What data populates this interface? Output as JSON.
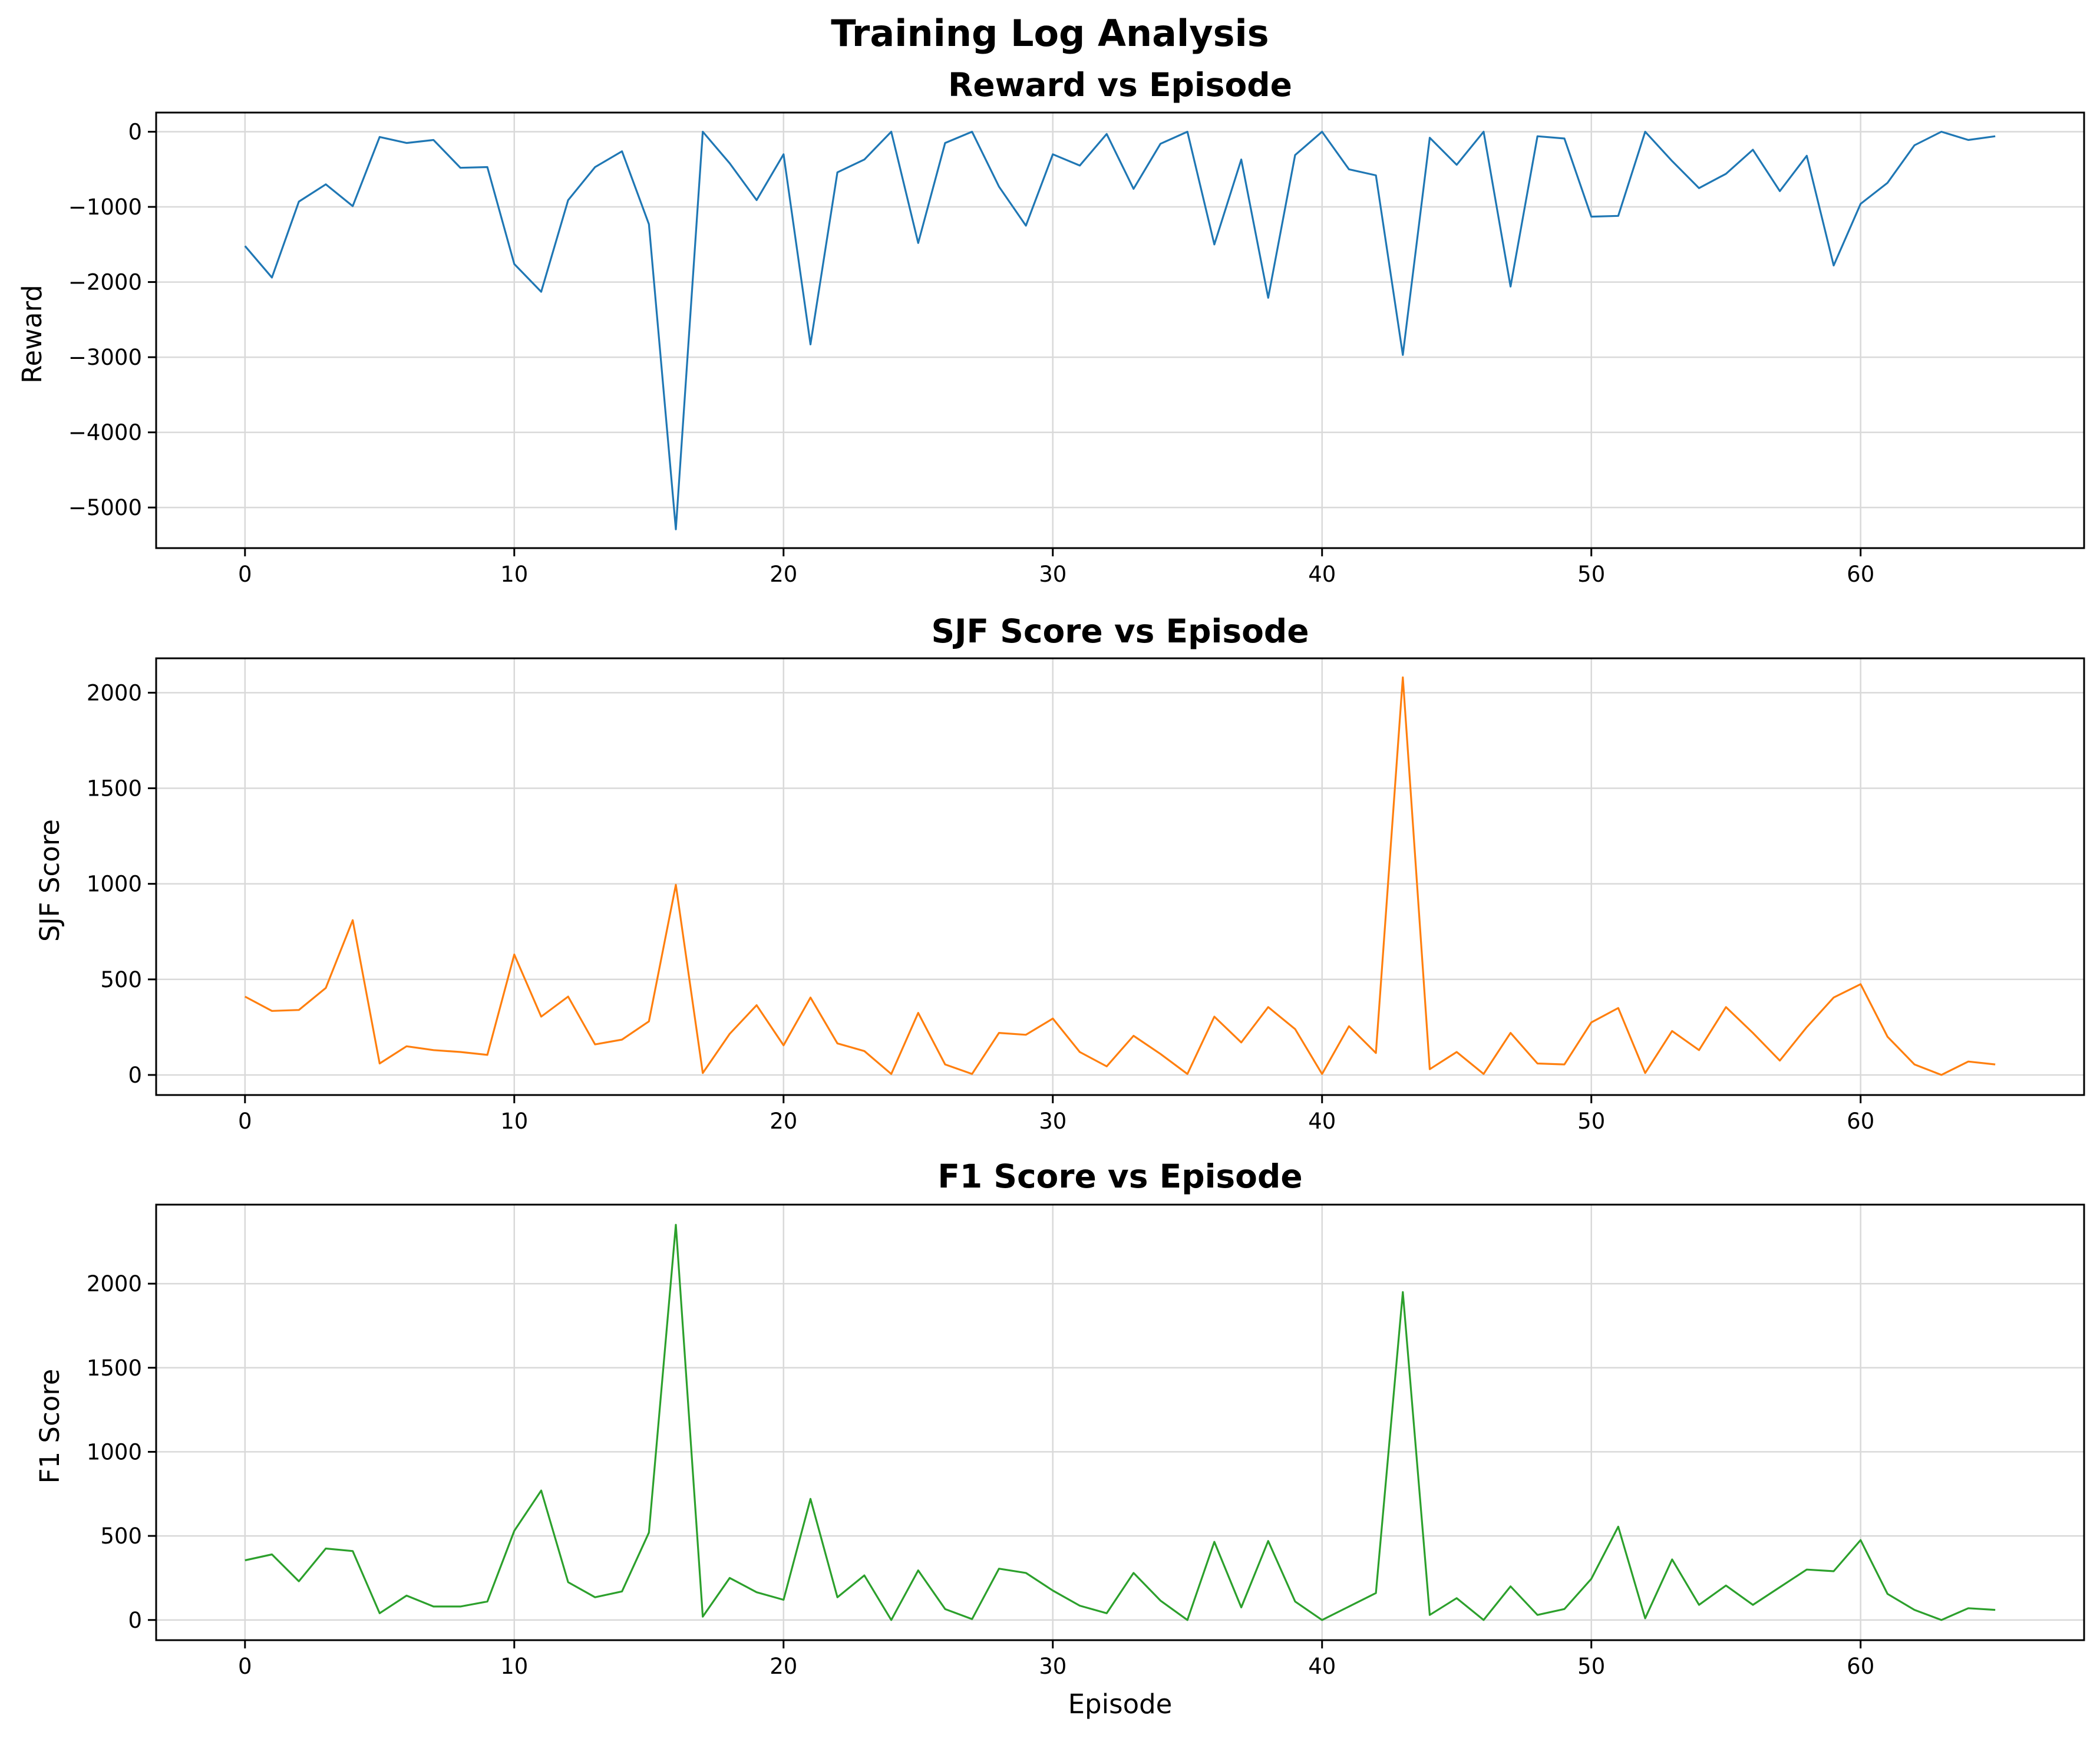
{
  "figure": {
    "suptitle": "Training Log Analysis"
  },
  "chart_data": [
    {
      "type": "line",
      "title": "Reward vs Episode",
      "xlabel": "",
      "ylabel": "Reward",
      "xlim": [
        -3.3,
        68.3
      ],
      "ylim": [
        -5540,
        255
      ],
      "xticks": [
        0,
        10,
        20,
        30,
        40,
        50,
        60
      ],
      "yticks": [
        0,
        -1000,
        -2000,
        -3000,
        -4000,
        -5000
      ],
      "ytick_labels": [
        "0",
        "−1000",
        "−2000",
        "−3000",
        "−4000",
        "−5000"
      ],
      "grid": true,
      "color": "#1f77b4",
      "x": [
        0,
        1,
        2,
        3,
        4,
        5,
        6,
        7,
        8,
        9,
        10,
        11,
        12,
        13,
        14,
        15,
        16,
        17,
        18,
        19,
        20,
        21,
        22,
        23,
        24,
        25,
        26,
        27,
        28,
        29,
        30,
        31,
        32,
        33,
        34,
        35,
        36,
        37,
        38,
        39,
        40,
        41,
        42,
        43,
        44,
        45,
        46,
        47,
        48,
        49,
        50,
        51,
        52,
        53,
        54,
        55,
        56,
        57,
        58,
        59,
        60,
        61,
        62,
        63,
        64,
        65
      ],
      "y": [
        -1520,
        -1940,
        -930,
        -700,
        -990,
        -70,
        -150,
        -110,
        -480,
        -470,
        -1760,
        -2130,
        -910,
        -470,
        -260,
        -1230,
        -5290,
        0,
        -420,
        -910,
        -300,
        -2830,
        -540,
        -370,
        0,
        -1480,
        -150,
        0,
        -730,
        -1250,
        -300,
        -450,
        -30,
        -760,
        -160,
        0,
        -1500,
        -370,
        -2210,
        -310,
        0,
        -500,
        -580,
        -2970,
        -80,
        -440,
        0,
        -2060,
        -60,
        -90,
        -1130,
        -1120,
        0,
        -390,
        -750,
        -560,
        -240,
        -790,
        -320,
        -1780,
        -960,
        -680,
        -180,
        0,
        -110,
        -60
      ]
    },
    {
      "type": "line",
      "title": "SJF Score vs Episode",
      "xlabel": "",
      "ylabel": "SJF Score",
      "xlim": [
        -3.3,
        68.3
      ],
      "ylim": [
        -105,
        2180
      ],
      "xticks": [
        0,
        10,
        20,
        30,
        40,
        50,
        60
      ],
      "yticks": [
        0,
        500,
        1000,
        1500,
        2000
      ],
      "ytick_labels": [
        "0",
        "500",
        "1000",
        "1500",
        "2000"
      ],
      "grid": true,
      "color": "#ff7f0e",
      "x": [
        0,
        1,
        2,
        3,
        4,
        5,
        6,
        7,
        8,
        9,
        10,
        11,
        12,
        13,
        14,
        15,
        16,
        17,
        18,
        19,
        20,
        21,
        22,
        23,
        24,
        25,
        26,
        27,
        28,
        29,
        30,
        31,
        32,
        33,
        34,
        35,
        36,
        37,
        38,
        39,
        40,
        41,
        42,
        43,
        44,
        45,
        46,
        47,
        48,
        49,
        50,
        51,
        52,
        53,
        54,
        55,
        56,
        57,
        58,
        59,
        60,
        61,
        62,
        63,
        64,
        65
      ],
      "y": [
        410,
        335,
        340,
        455,
        810,
        60,
        150,
        130,
        120,
        105,
        630,
        305,
        410,
        160,
        185,
        280,
        995,
        10,
        215,
        365,
        155,
        405,
        165,
        125,
        5,
        325,
        55,
        5,
        220,
        210,
        295,
        120,
        45,
        205,
        110,
        5,
        305,
        170,
        355,
        240,
        5,
        255,
        115,
        2080,
        30,
        120,
        5,
        220,
        60,
        55,
        275,
        350,
        10,
        230,
        130,
        355,
        220,
        75,
        250,
        405,
        475,
        200,
        55,
        0,
        70,
        55
      ]
    },
    {
      "type": "line",
      "title": "F1 Score vs Episode",
      "xlabel": "Episode",
      "ylabel": "F1 Score",
      "xlim": [
        -3.3,
        68.3
      ],
      "ylim": [
        -120,
        2470
      ],
      "xticks": [
        0,
        10,
        20,
        30,
        40,
        50,
        60
      ],
      "yticks": [
        0,
        500,
        1000,
        1500,
        2000
      ],
      "ytick_labels": [
        "0",
        "500",
        "1000",
        "1500",
        "2000"
      ],
      "grid": true,
      "color": "#2ca02c",
      "x": [
        0,
        1,
        2,
        3,
        4,
        5,
        6,
        7,
        8,
        9,
        10,
        11,
        12,
        13,
        14,
        15,
        16,
        17,
        18,
        19,
        20,
        21,
        22,
        23,
        24,
        25,
        26,
        27,
        28,
        29,
        30,
        31,
        32,
        33,
        34,
        35,
        36,
        37,
        38,
        39,
        40,
        41,
        42,
        43,
        44,
        45,
        46,
        47,
        48,
        49,
        50,
        51,
        52,
        53,
        54,
        55,
        56,
        57,
        58,
        59,
        60,
        61,
        62,
        63,
        64,
        65
      ],
      "y": [
        355,
        390,
        230,
        425,
        410,
        40,
        145,
        80,
        80,
        110,
        530,
        770,
        225,
        135,
        170,
        520,
        2350,
        20,
        250,
        165,
        120,
        720,
        135,
        265,
        0,
        295,
        65,
        5,
        305,
        280,
        175,
        85,
        40,
        280,
        115,
        0,
        465,
        75,
        470,
        110,
        0,
        80,
        160,
        1950,
        30,
        130,
        0,
        200,
        30,
        65,
        245,
        555,
        10,
        360,
        90,
        205,
        90,
        195,
        300,
        290,
        475,
        155,
        60,
        0,
        70,
        60
      ]
    }
  ]
}
